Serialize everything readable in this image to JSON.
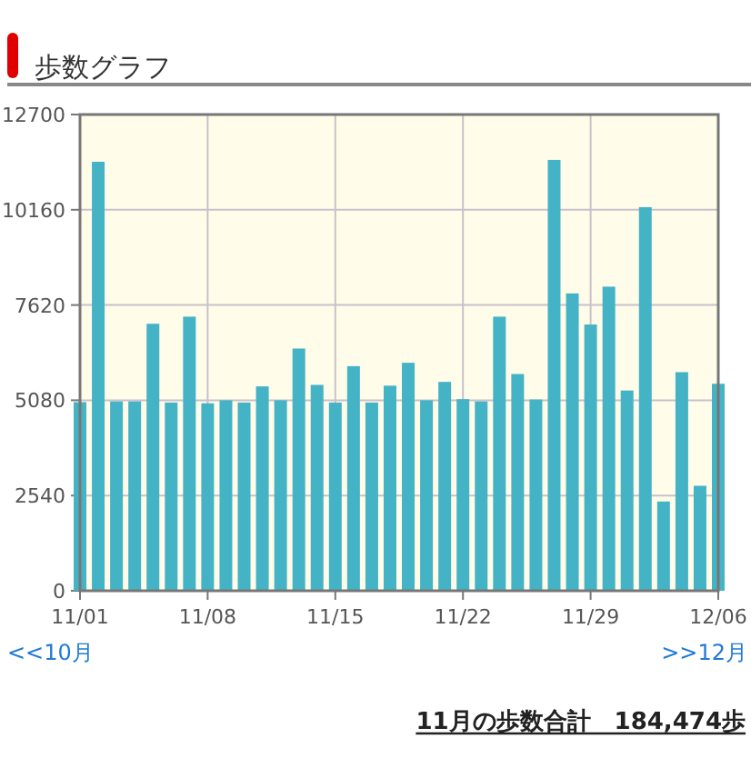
{
  "chart_data": {
    "type": "bar",
    "title": "歩数グラフ",
    "x": [
      "--11-01",
      "--11-02",
      "--11-03",
      "--11-04",
      "--11-05",
      "--11-06",
      "--11-07",
      "--11-08",
      "--11-09",
      "--11-10",
      "--11-11",
      "--11-12",
      "--11-13",
      "--11-14",
      "--11-15",
      "--11-16",
      "--11-17",
      "--11-18",
      "--11-19",
      "--11-20",
      "--11-21",
      "--11-22",
      "--11-23",
      "--11-24",
      "--11-25",
      "--11-26",
      "--11-27",
      "--11-28",
      "--11-29",
      "--11-30",
      "--12-01",
      "--12-02",
      "--12-03",
      "--12-04",
      "--12-05",
      "--12-06"
    ],
    "values": [
      5030,
      11440,
      5050,
      5050,
      7120,
      5020,
      7310,
      5000,
      5080,
      5020,
      5450,
      5080,
      6460,
      5490,
      5020,
      5990,
      5020,
      5470,
      6080,
      5080,
      5570,
      5110,
      5050,
      7310,
      5780,
      5100,
      11490,
      7930,
      7100,
      8110,
      5340,
      10230,
      2380,
      5830,
      2800,
      5520
    ],
    "color": "#45b3c6",
    "xlim": [
      "--11-01",
      "--12-06"
    ],
    "xticks": [
      {
        "value": "--11-01",
        "label": "11/01"
      },
      {
        "value": "--11-08",
        "label": "11/08"
      },
      {
        "value": "--11-15",
        "label": "11/15"
      },
      {
        "value": "--11-22",
        "label": "11/22"
      },
      {
        "value": "--11-29",
        "label": "11/29"
      },
      {
        "value": "--12-06",
        "label": "12/06"
      }
    ],
    "ylim": [
      0,
      12700
    ],
    "yticks": [
      0,
      2540,
      5080,
      7620,
      10160,
      12700
    ],
    "grid": true,
    "annotations": [
      "<<10月",
      ">>12月",
      "11月の歩数合計　184,474歩"
    ]
  }
}
